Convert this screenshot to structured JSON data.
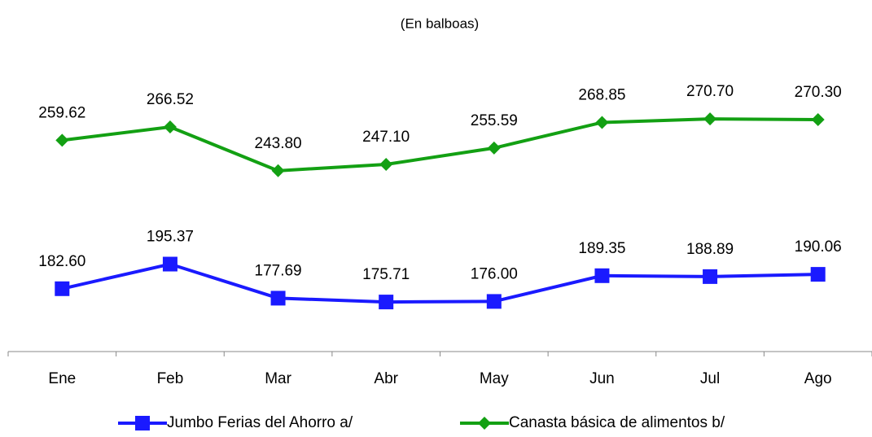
{
  "chart_data": {
    "type": "line",
    "subtitle": "(En balboas)",
    "categories": [
      "Ene",
      "Feb",
      "Mar",
      "Abr",
      "May",
      "Jun",
      "Jul",
      "Ago"
    ],
    "series": [
      {
        "name": "Jumbo Ferias del Ahorro a/",
        "color": "#1a1aff",
        "marker": "square",
        "values": [
          182.6,
          195.37,
          177.69,
          175.71,
          176.0,
          189.35,
          188.89,
          190.06
        ],
        "value_labels": [
          "182.60",
          "195.37",
          "177.69",
          "175.71",
          "176.00",
          "189.35",
          "188.89",
          "190.06"
        ]
      },
      {
        "name": "Canasta básica de alimentos b/",
        "color": "#13a013",
        "marker": "diamond",
        "values": [
          259.62,
          266.52,
          243.8,
          247.1,
          255.59,
          268.85,
          270.7,
          270.3
        ],
        "value_labels": [
          "259.62",
          "266.52",
          "243.80",
          "247.10",
          "255.59",
          "268.85",
          "270.70",
          "270.30"
        ]
      }
    ],
    "ylim": [
      150,
      310
    ],
    "legend": "bottom"
  }
}
